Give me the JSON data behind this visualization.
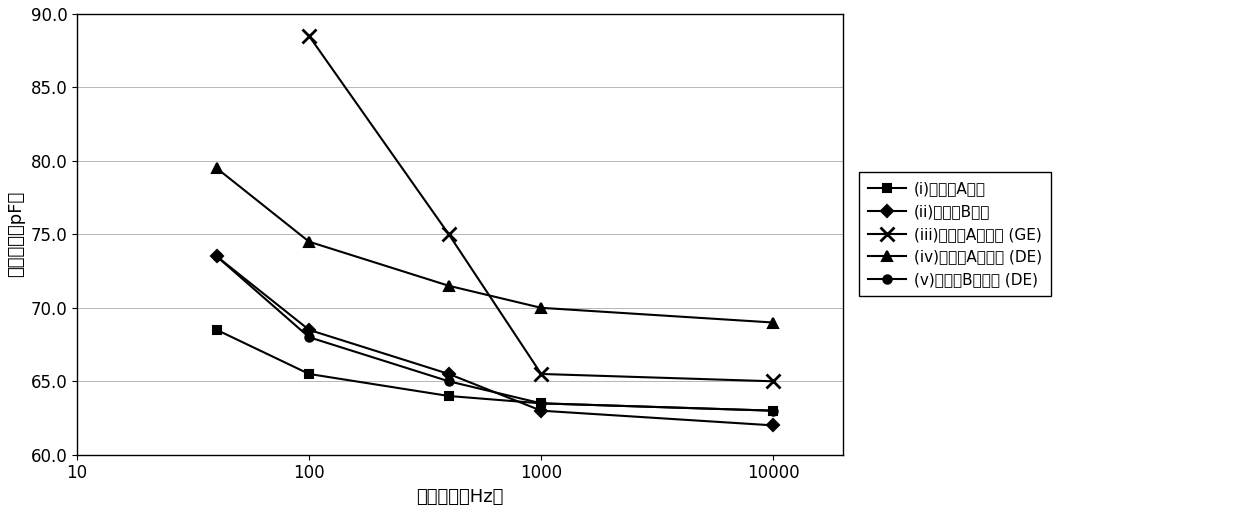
{
  "series": [
    {
      "label": "(i)润滑油A新油",
      "marker": "s",
      "x": [
        40,
        100,
        400,
        1000,
        10000
      ],
      "y": [
        68.5,
        65.5,
        64.0,
        63.5,
        63.0
      ]
    },
    {
      "label": "(ii)润滑油B新油",
      "marker": "D",
      "x": [
        40,
        100,
        400,
        1000,
        10000
      ],
      "y": [
        73.5,
        68.5,
        65.5,
        63.0,
        62.0
      ]
    },
    {
      "label": "(iii)润滑油A劣化油（GE）",
      "marker": "x",
      "x": [
        100,
        400,
        1000,
        10000
      ],
      "y": [
        88.5,
        75.0,
        65.5,
        65.0
      ]
    },
    {
      "label": "(iv)润滑油A劣化油（DE）",
      "marker": "^",
      "x": [
        40,
        100,
        400,
        1000,
        10000
      ],
      "y": [
        79.5,
        74.5,
        71.5,
        70.0,
        69.0
      ]
    },
    {
      "label": "(v)润滑油B劣化油（DE）",
      "marker": "o",
      "x": [
        40,
        100,
        400,
        1000,
        10000
      ],
      "y": [
        73.5,
        68.0,
        65.0,
        63.5,
        63.0
      ]
    }
  ],
  "legend_labels": [
    "(i)润滑油A新油",
    "(ii)润滑油B新油",
    "(iii)润滑油A劣化油 (GE)",
    "(iv)润滑油A劣化油 (DE)",
    "(v)润滑油B劣化油 (DE)"
  ],
  "xlabel": "测定频率（Hz）",
  "ylabel": "电容成分（pF）",
  "ylim": [
    60.0,
    90.0
  ],
  "xlim": [
    10,
    20000
  ],
  "yticks": [
    60.0,
    65.0,
    70.0,
    75.0,
    80.0,
    85.0,
    90.0
  ],
  "xticks": [
    10,
    100,
    1000,
    10000
  ],
  "xtick_labels": [
    "10",
    "100",
    "1000",
    "10000"
  ],
  "background_color": "#ffffff"
}
